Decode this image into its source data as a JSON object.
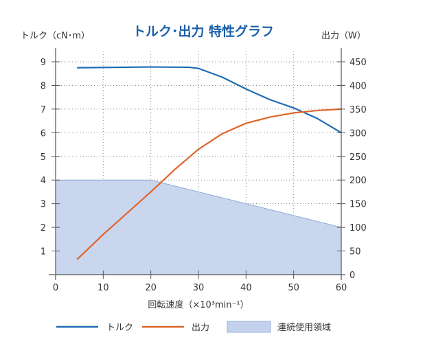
{
  "chart_data": {
    "type": "line",
    "title": "トルク･出力  特性グラフ",
    "xlabel": "回転速度（×10³min⁻¹）",
    "ylabel_left": "トルク（cN･m）",
    "ylabel_right": "出力（W）",
    "xlim": [
      0,
      60
    ],
    "ylim_left": [
      0,
      9
    ],
    "ylim_right": [
      0,
      450
    ],
    "x_ticks": [
      "0",
      "10",
      "20",
      "30",
      "40",
      "50",
      "60"
    ],
    "y_left_ticks": [
      "1",
      "2",
      "3",
      "4",
      "5",
      "6",
      "7",
      "8",
      "9"
    ],
    "y_right_ticks": [
      "0",
      "50",
      "100",
      "150",
      "200",
      "250",
      "300",
      "350",
      "400",
      "450"
    ],
    "grid": true,
    "legend_position": "bottom",
    "series": [
      {
        "name": "トルク",
        "axis": "left",
        "color": "#1f6bb5",
        "x": [
          4.5,
          10,
          20,
          28,
          30,
          35,
          40,
          45,
          50,
          55,
          60
        ],
        "y": [
          8.75,
          8.76,
          8.78,
          8.77,
          8.72,
          8.35,
          7.85,
          7.4,
          7.05,
          6.6,
          6.0
        ]
      },
      {
        "name": "出力",
        "axis": "right",
        "color": "#e0642a",
        "x": [
          4.5,
          10,
          15,
          20,
          25,
          30,
          35,
          40,
          45,
          50,
          55,
          60
        ],
        "y": [
          32,
          85,
          130,
          175,
          222,
          265,
          298,
          320,
          333,
          342,
          347,
          350
        ]
      },
      {
        "name": "連続使用領域",
        "axis": "left",
        "type": "area",
        "color": "#c3d1ec",
        "x": [
          0,
          20,
          60
        ],
        "y": [
          4,
          4,
          2
        ]
      }
    ]
  }
}
